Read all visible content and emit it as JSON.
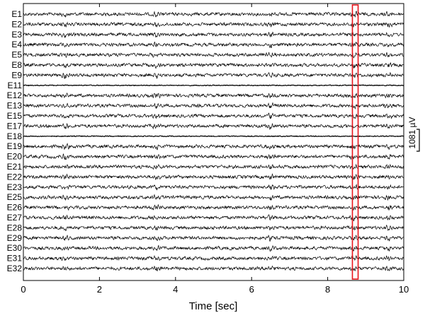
{
  "chart_data": {
    "type": "line",
    "xlabel": "Time [sec]",
    "xlim": [
      0,
      10
    ],
    "xticks": [
      0,
      2,
      4,
      6,
      8,
      10
    ],
    "channels": [
      "E1",
      "E2",
      "E3",
      "E4",
      "E5",
      "E8",
      "E9",
      "E11",
      "E12",
      "E13",
      "E15",
      "E17",
      "E18",
      "E19",
      "E20",
      "E21",
      "E22",
      "E23",
      "E25",
      "E26",
      "E27",
      "E28",
      "E29",
      "E30",
      "E31",
      "E32"
    ],
    "scale_bar": {
      "value": 1081,
      "unit": "µV",
      "label": "1081 µV"
    },
    "highlight_window": {
      "x_start": 8.65,
      "x_end": 8.8,
      "color": "#e8141b"
    },
    "trace_color": "#000000",
    "notable_events_sec": [
      1.1,
      3.5,
      6.5,
      8.7,
      9.6
    ]
  }
}
